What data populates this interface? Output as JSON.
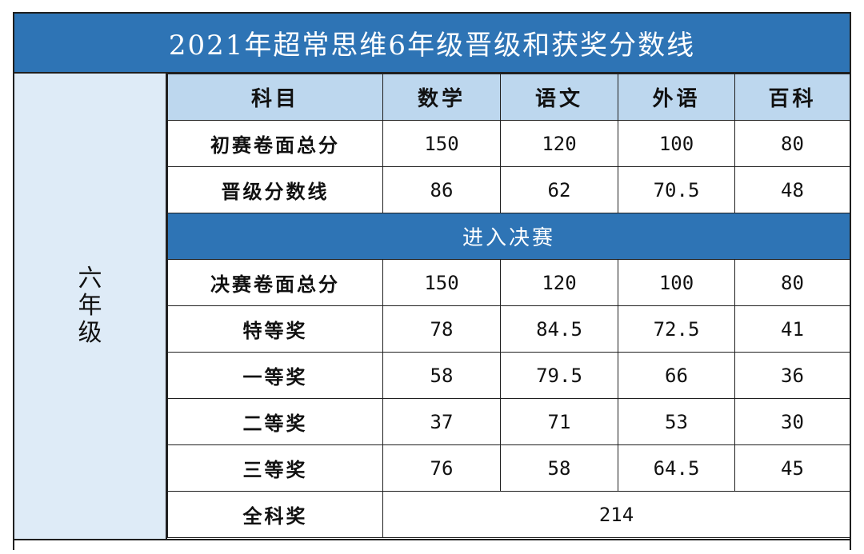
{
  "title": "2021年超常思维6年级晋级和获奖分数线",
  "grade_label": "六年级",
  "header": {
    "subject": "科目",
    "columns": [
      "数学",
      "语文",
      "外语",
      "百科"
    ]
  },
  "prelim_rows": [
    {
      "label": "初赛卷面总分",
      "values": [
        "150",
        "120",
        "100",
        "80"
      ]
    },
    {
      "label": "晋级分数线",
      "values": [
        "86",
        "62",
        "70.5",
        "48"
      ]
    }
  ],
  "section_title": "进入决赛",
  "final_rows": [
    {
      "label": "决赛卷面总分",
      "values": [
        "150",
        "120",
        "100",
        "80"
      ]
    },
    {
      "label": "特等奖",
      "values": [
        "78",
        "84.5",
        "72.5",
        "41"
      ]
    },
    {
      "label": "一等奖",
      "values": [
        "58",
        "79.5",
        "66",
        "36"
      ]
    },
    {
      "label": "二等奖",
      "values": [
        "37",
        "71",
        "53",
        "30"
      ]
    },
    {
      "label": "三等奖",
      "values": [
        "76",
        "58",
        "64.5",
        "45"
      ]
    }
  ],
  "overall": {
    "label": "全科奖",
    "value": "214"
  },
  "colors": {
    "header_blue": "#2e74b5",
    "light_blue": "#bdd7ee",
    "pale_blue": "#deebf7"
  }
}
